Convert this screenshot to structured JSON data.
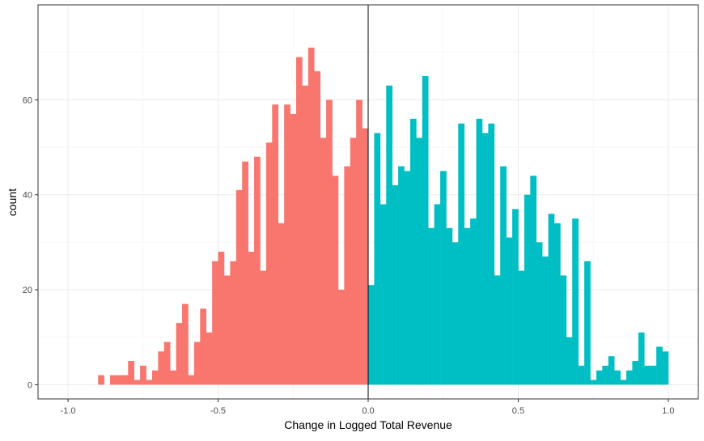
{
  "chart_data": {
    "type": "bar",
    "xlabel": "Change in Logged Total Revenue",
    "ylabel": "count",
    "xlim": [
      -1.1,
      1.1
    ],
    "ylim": [
      -3,
      80
    ],
    "xticks": [
      -1.0,
      -0.5,
      0.0,
      0.5,
      1.0
    ],
    "xtick_labels": [
      "-1.0",
      "-0.5",
      "0.0",
      "0.5",
      "1.0"
    ],
    "yticks": [
      0,
      20,
      40,
      60
    ],
    "ytick_labels": [
      "0",
      "20",
      "40",
      "60"
    ],
    "vline_x": 0.0,
    "grid": true,
    "legend": "none",
    "bin_width": 0.02,
    "series": [
      {
        "color": "#F8766D",
        "x": [
          -0.9,
          -0.86,
          -0.84,
          -0.82,
          -0.8,
          -0.78,
          -0.76,
          -0.74,
          -0.72,
          -0.7,
          -0.68,
          -0.66,
          -0.64,
          -0.62,
          -0.6,
          -0.58,
          -0.56,
          -0.54,
          -0.52,
          -0.5,
          -0.48,
          -0.46,
          -0.44,
          -0.42,
          -0.4,
          -0.38,
          -0.36,
          -0.34,
          -0.32,
          -0.3,
          -0.28,
          -0.26,
          -0.24,
          -0.22,
          -0.2,
          -0.18,
          -0.16,
          -0.14,
          -0.12,
          -0.1,
          -0.08,
          -0.06,
          -0.04,
          -0.02
        ],
        "values": [
          2,
          2,
          2,
          2,
          5,
          1,
          4,
          1,
          3,
          7,
          9,
          3,
          13,
          17,
          2,
          9,
          16,
          11,
          26,
          28,
          23,
          26,
          41,
          47,
          28,
          48,
          24,
          51,
          59,
          34,
          59,
          57,
          69,
          63,
          71,
          66,
          52,
          60,
          44,
          20,
          46,
          52,
          60,
          54
        ]
      },
      {
        "color": "#00BFC4",
        "x": [
          0.0,
          0.02,
          0.04,
          0.06,
          0.08,
          0.1,
          0.12,
          0.14,
          0.16,
          0.18,
          0.2,
          0.22,
          0.24,
          0.26,
          0.28,
          0.3,
          0.32,
          0.34,
          0.36,
          0.38,
          0.4,
          0.42,
          0.44,
          0.46,
          0.48,
          0.5,
          0.52,
          0.54,
          0.56,
          0.58,
          0.6,
          0.62,
          0.64,
          0.66,
          0.68,
          0.7,
          0.72,
          0.74,
          0.76,
          0.78,
          0.8,
          0.82,
          0.84,
          0.86,
          0.88,
          0.9,
          0.92,
          0.94,
          0.96,
          0.98
        ],
        "values": [
          21,
          53,
          38,
          63,
          42,
          46,
          45,
          56,
          52,
          65,
          33,
          38,
          45,
          33,
          30,
          55,
          33,
          35,
          56,
          53,
          55,
          23,
          46,
          31,
          37,
          24,
          40,
          44,
          30,
          27,
          36,
          34,
          23,
          10,
          35,
          4,
          26,
          1,
          3,
          4,
          6,
          3,
          1,
          3,
          5,
          11,
          4,
          4,
          8,
          7
        ]
      }
    ]
  }
}
